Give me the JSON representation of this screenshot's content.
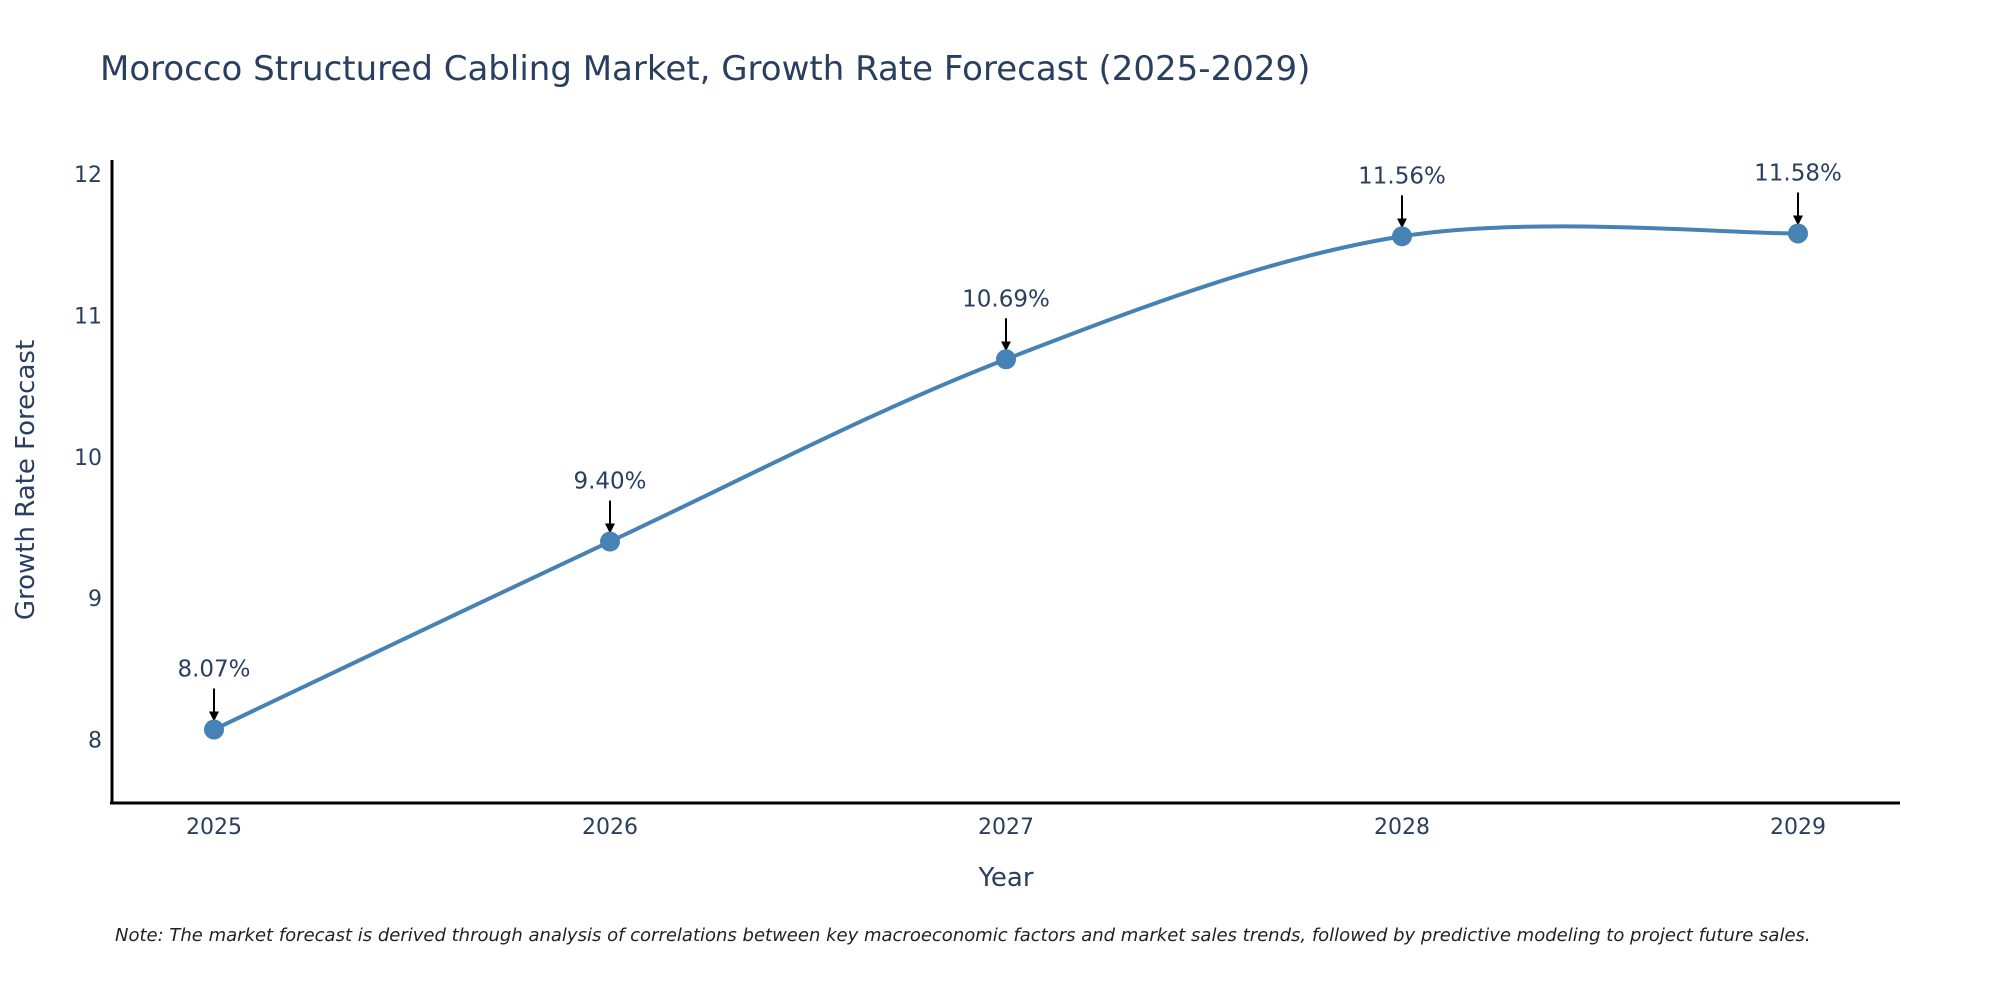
{
  "chart_data": {
    "type": "line",
    "title": "Morocco Structured Cabling Market, Growth Rate Forecast (2025-2029)",
    "xlabel": "Year",
    "ylabel": "Growth Rate Forecast",
    "categories": [
      "2025",
      "2026",
      "2027",
      "2028",
      "2029"
    ],
    "series": [
      {
        "name": "Growth Rate Forecast",
        "values": [
          8.07,
          9.4,
          10.69,
          11.56,
          11.58
        ],
        "labels": [
          "8.07%",
          "9.40%",
          "10.69%",
          "11.56%",
          "11.58%"
        ],
        "color": "#4682b4"
      }
    ],
    "yticks": [
      "8",
      "9",
      "10",
      "11",
      "12"
    ],
    "ylim": [
      7.55,
      12.1
    ],
    "grid": false,
    "line_shape": "spline",
    "note": "Note: The market forecast is derived through analysis of correlations between key macroeconomic factors and market sales trends, followed by predictive modeling to project future sales."
  }
}
